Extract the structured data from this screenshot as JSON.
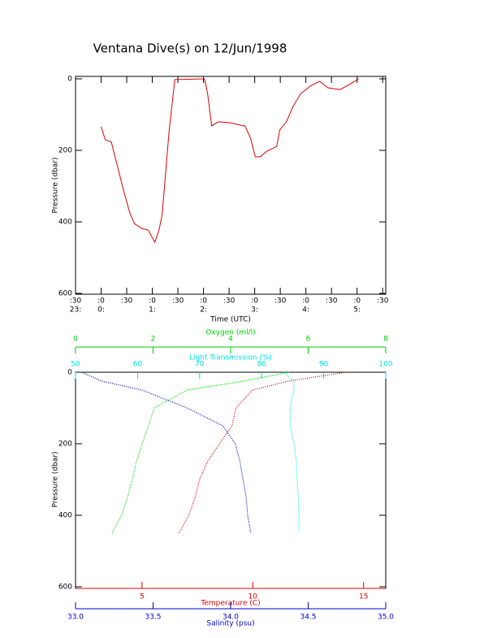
{
  "chart_data": [
    {
      "type": "line",
      "title": "Ventana Dive(s) on 12/Jun/1998",
      "xlabel": "Time (UTC)",
      "ylabel": "Pressure (dbar)",
      "color": "#dd0000",
      "invert_y": true,
      "x": [
        24.0,
        24.08,
        24.2,
        24.32,
        24.43,
        24.56,
        24.65,
        24.79,
        24.92,
        25.05,
        25.13,
        25.19,
        25.25,
        25.33,
        25.44,
        26.02,
        26.08,
        26.16,
        26.29,
        26.52,
        26.81,
        26.92,
        27.01,
        27.11,
        27.24,
        27.43,
        27.49,
        27.62,
        27.75,
        27.9,
        28.11,
        28.27,
        28.43,
        28.67,
        28.87,
        29.03
      ],
      "values": [
        134,
        170,
        177,
        245,
        307,
        375,
        405,
        418,
        423,
        457,
        423,
        382,
        280,
        143,
        2,
        0,
        41,
        132,
        120,
        123,
        132,
        166,
        218,
        218,
        202,
        189,
        143,
        120,
        77,
        41,
        18,
        7,
        25,
        30,
        14,
        0
      ],
      "xlim": [
        23.5,
        29.56
      ],
      "ylim": [
        0,
        600
      ],
      "yticks": [
        0,
        200,
        400,
        600
      ],
      "xticks": [
        {
          "value": 23.5,
          "label": ":30"
        },
        {
          "value": 24,
          "label": ":0"
        },
        {
          "value": 24.5,
          "label": ":30"
        },
        {
          "value": 25,
          "label": ":0"
        },
        {
          "value": 25.5,
          "label": ":30"
        },
        {
          "value": 26,
          "label": ":0"
        },
        {
          "value": 26.5,
          "label": ":30"
        },
        {
          "value": 27,
          "label": ":0"
        },
        {
          "value": 27.5,
          "label": ":30"
        },
        {
          "value": 28,
          "label": ":0"
        },
        {
          "value": 28.5,
          "label": ":30"
        },
        {
          "value": 29,
          "label": ":0"
        },
        {
          "value": 29.5,
          "label": ":30"
        }
      ],
      "xticks_hour": [
        {
          "value": 23.5,
          "label": "23:"
        },
        {
          "value": 24,
          "label": "0:"
        },
        {
          "value": 25,
          "label": "1:"
        },
        {
          "value": 26,
          "label": "2:"
        },
        {
          "value": 27,
          "label": "3:"
        },
        {
          "value": 28,
          "label": "4:"
        },
        {
          "value": 29,
          "label": "5:"
        }
      ]
    },
    {
      "type": "profile",
      "ylabel": "Pressure (dbar)",
      "invert_y": true,
      "pressure": [
        0,
        25,
        50,
        100,
        150,
        200,
        250,
        300,
        350,
        400,
        450
      ],
      "ylim": [
        0,
        600
      ],
      "yticks": [
        0,
        200,
        400,
        600
      ],
      "series": [
        {
          "name": "Oxygen (ml/l)",
          "color": "#00cc00",
          "lim": [
            0,
            8
          ],
          "ticks": [
            0,
            2,
            4,
            6,
            8
          ],
          "values": [
            5.5,
            4.33,
            2.87,
            2.03,
            1.88,
            1.72,
            1.57,
            1.47,
            1.34,
            1.19,
            0.94
          ]
        },
        {
          "name": "Light Transmission (%)",
          "color": "#00e0e0",
          "lim": [
            50,
            100
          ],
          "ticks": [
            50,
            60,
            70,
            80,
            90,
            100
          ],
          "values": [
            83.6,
            85.2,
            85.2,
            84.6,
            84.6,
            85.2,
            85.6,
            85.7,
            85.9,
            86.0,
            86.0
          ]
        },
        {
          "name": "Temperature (C)",
          "color": "#dd0000",
          "lim": [
            2,
            16
          ],
          "ticks": [
            5,
            10,
            15
          ],
          "values": [
            14.2,
            11.6,
            9.98,
            9.24,
            9.06,
            8.5,
            7.96,
            7.59,
            7.4,
            7.11,
            6.67
          ]
        },
        {
          "name": "Salinity (psu)",
          "color": "#0000cc",
          "lim": [
            33,
            35
          ],
          "ticks": [
            {
              "value": 33,
              "label": "33.0"
            },
            {
              "value": 33.5,
              "label": "33.5"
            },
            {
              "value": 34,
              "label": "34.0"
            },
            {
              "value": 34.5,
              "label": "34.5"
            },
            {
              "value": 35,
              "label": "35.0"
            }
          ],
          "values": [
            33.04,
            33.17,
            33.43,
            33.72,
            33.95,
            34.03,
            34.06,
            34.08,
            34.1,
            34.11,
            34.13
          ]
        }
      ]
    }
  ]
}
